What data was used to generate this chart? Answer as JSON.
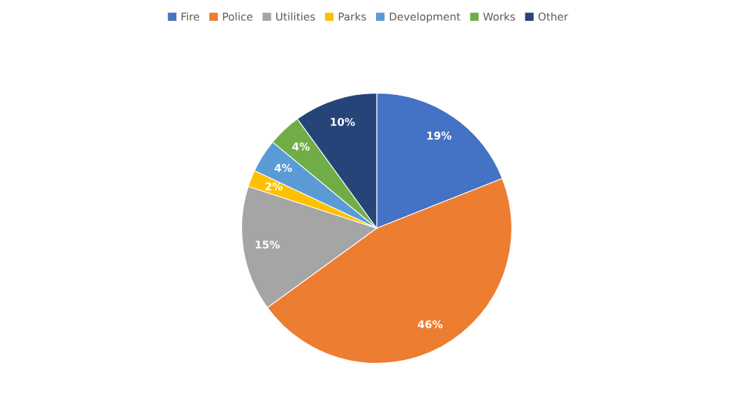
{
  "chart_data": {
    "type": "pie",
    "categories": [
      "Fire",
      "Police",
      "Utilities",
      "Parks",
      "Development",
      "Works",
      "Other"
    ],
    "values": [
      19,
      46,
      15,
      2,
      4,
      4,
      10
    ],
    "value_labels": [
      "19%",
      "46%",
      "15%",
      "2%",
      "4%",
      "4%",
      "10%"
    ],
    "colors": [
      "#4472c4",
      "#ed7d31",
      "#a5a5a5",
      "#ffc000",
      "#5b9bd5",
      "#70ad47",
      "#264478"
    ],
    "legend": "top"
  }
}
